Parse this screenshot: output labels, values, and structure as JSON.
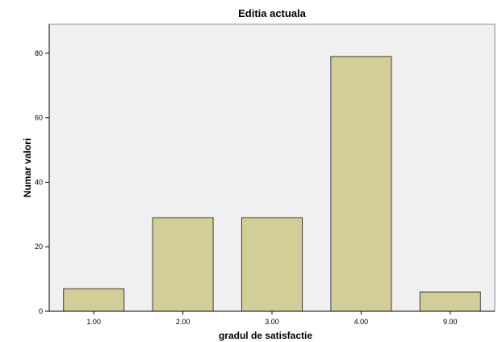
{
  "chart_data": {
    "type": "bar",
    "title": "Editia actuala",
    "xlabel": "gradul de satisfactie",
    "ylabel": "Numar valori",
    "categories": [
      "1.00",
      "2.00",
      "3.00",
      "4.00",
      "9.00"
    ],
    "values": [
      7,
      29,
      29,
      79,
      6
    ],
    "ylim": [
      0,
      89
    ],
    "yticks": [
      "0",
      "20",
      "40",
      "60",
      "80"
    ],
    "grid": false,
    "legend": "none"
  },
  "colors": {
    "plot_background": "#f0f0f0",
    "bar_fill": "#d3ce98",
    "bar_stroke": "#3c3c3c",
    "frame": "#8f8f8f"
  }
}
